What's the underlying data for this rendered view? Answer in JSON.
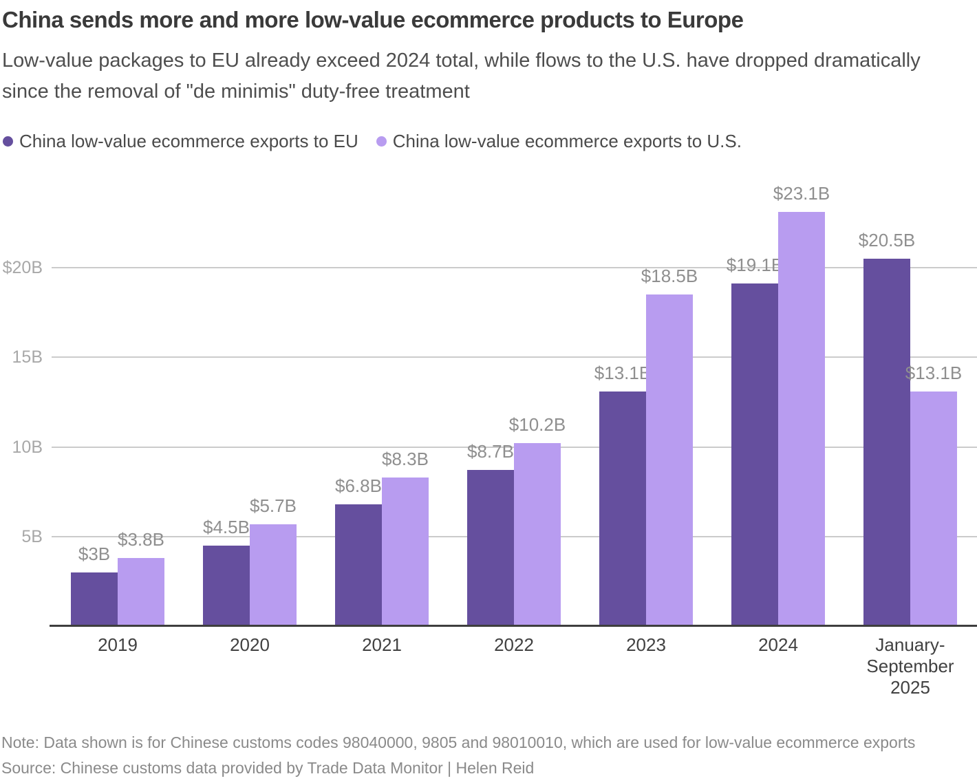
{
  "header": {
    "title": "China sends more and more low-value ecommerce products to Europe",
    "subtitle": "Low-value packages to EU already exceed 2024 total, while flows to the U.S. have dropped dramatically since the removal of \"de minimis\" duty-free treatment"
  },
  "footer": {
    "note": "Note: Data shown is for Chinese customs codes 98040000, 9805 and 98010010, which are used for low-value ecommerce exports",
    "source": "Source: Chinese customs data provided by Trade Data Monitor | Helen Reid"
  },
  "chart_data": {
    "type": "bar",
    "title": "China sends more and more low-value ecommerce products to Europe",
    "categories": [
      "2019",
      "2020",
      "2021",
      "2022",
      "2023",
      "2024",
      "January-September 2025"
    ],
    "series": [
      {
        "name": "China low-value ecommerce exports to EU",
        "color": "#654F9E",
        "values": [
          3,
          4.5,
          6.8,
          8.7,
          13.1,
          19.1,
          20.5
        ],
        "labels": [
          "$3B",
          "$4.5B",
          "$6.8B",
          "$8.7B",
          "$13.1B",
          "$19.1B",
          "$20.5B"
        ]
      },
      {
        "name": "China low-value ecommerce exports to U.S.",
        "color": "#B89CF0",
        "values": [
          3.8,
          5.7,
          8.3,
          10.2,
          18.5,
          23.1,
          13.1
        ],
        "labels": [
          "$3.8B",
          "$5.7B",
          "$8.3B",
          "$10.2B",
          "$18.5B",
          "$23.1B",
          "$13.1B"
        ]
      }
    ],
    "yticks": [
      {
        "value": 5,
        "label": "5B"
      },
      {
        "value": 10,
        "label": "10B"
      },
      {
        "value": 15,
        "label": "15B"
      },
      {
        "value": 20,
        "label": "$20B"
      }
    ],
    "ylim": [
      0,
      25
    ],
    "xlabel": "",
    "ylabel": "",
    "grid": true,
    "legend_position": "top-left"
  }
}
